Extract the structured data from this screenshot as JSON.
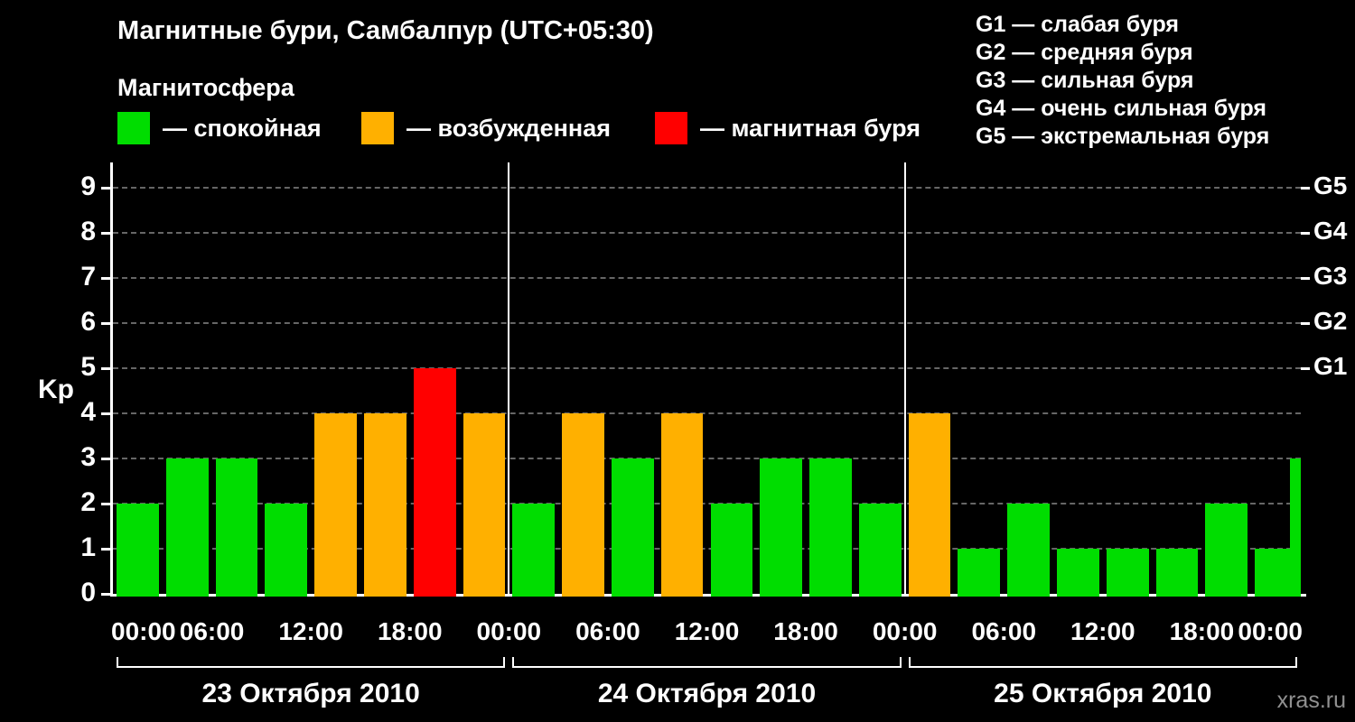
{
  "title": "Магнитные бури, Самбалпур (UTC+05:30)",
  "watermark": "xras.ru",
  "g_legend": [
    "G1 — слабая буря",
    "G2 — средняя буря",
    "G3 — сильная буря",
    "G4 — очень сильная буря",
    "G5 — экстремальная буря"
  ],
  "legend": {
    "title": "Магнитосфера",
    "items": [
      {
        "key": "quiet",
        "color": "#00dd00",
        "label": "— спокойная"
      },
      {
        "key": "excited",
        "color": "#ffb000",
        "label": "— возбужденная"
      },
      {
        "key": "storm",
        "color": "#ff0000",
        "label": "— магнитная буря"
      }
    ]
  },
  "chart_data": {
    "type": "bar",
    "title": "Магнитные бури, Самбалпур (UTC+05:30)",
    "ylabel": "Kp",
    "ylim": [
      0,
      9.5
    ],
    "yticks": [
      0,
      1,
      2,
      3,
      4,
      5,
      6,
      7,
      8,
      9
    ],
    "grid": "dashed horizontal line at each integer Kp value",
    "right_axis": [
      {
        "kp": 5,
        "label": "G1"
      },
      {
        "kp": 6,
        "label": "G2"
      },
      {
        "kp": 7,
        "label": "G3"
      },
      {
        "kp": 8,
        "label": "G4"
      },
      {
        "kp": 9,
        "label": "G5"
      }
    ],
    "x_ticks": [
      "00:00",
      "06:00",
      "12:00",
      "18:00",
      "00:00",
      "06:00",
      "12:00",
      "18:00",
      "00:00",
      "06:00",
      "12:00",
      "18:00",
      "00:00"
    ],
    "interval_hours": 3,
    "days": [
      {
        "date": "23 Октября 2010",
        "kp": [
          2,
          3,
          3,
          2,
          4,
          4,
          5,
          4
        ]
      },
      {
        "date": "24 Октября 2010",
        "kp": [
          2,
          4,
          3,
          4,
          2,
          3,
          3,
          2
        ]
      },
      {
        "date": "25 Октября 2010",
        "kp": [
          4,
          1,
          2,
          1,
          1,
          1,
          2,
          1
        ]
      }
    ],
    "trailing_partial_bar_kp": 3,
    "color_rule": {
      "quiet_max": 3,
      "excited_max": 4
    },
    "colors": {
      "quiet": "#00dd00",
      "excited": "#ffb000",
      "storm": "#ff0000",
      "grid": "#666666",
      "axis": "#ffffff"
    }
  }
}
